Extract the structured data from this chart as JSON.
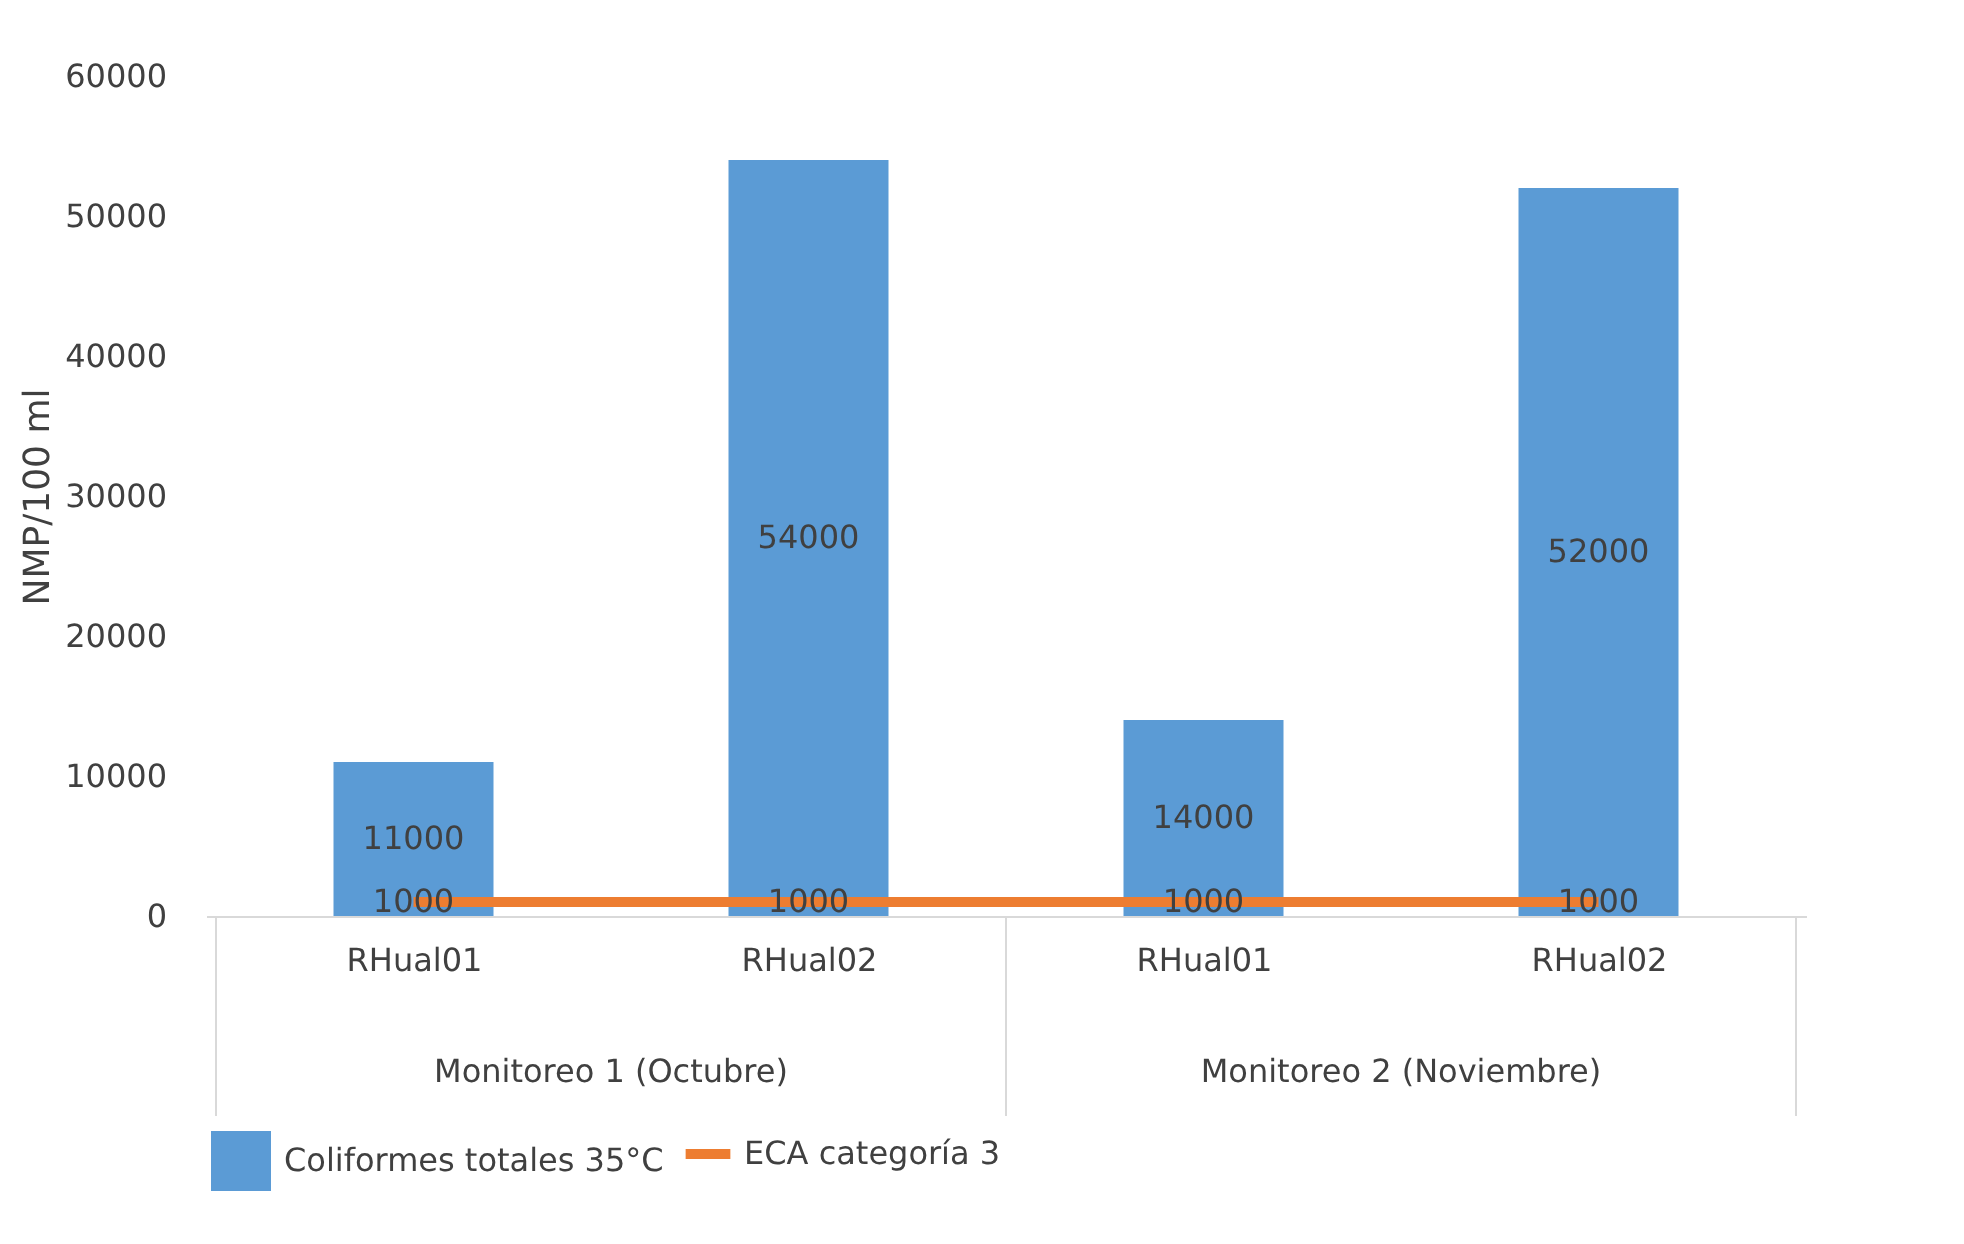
{
  "chart_data": {
    "type": "bar",
    "ylabel": "NMP/100 ml",
    "categories": [
      "RHual01",
      "RHual02",
      "RHual01",
      "RHual02"
    ],
    "series": [
      {
        "name": "Coliformes totales 35°C",
        "color": "#5b9bd5",
        "values": [
          11000,
          54000,
          14000,
          52000
        ]
      },
      {
        "name": "ECA categoría 3",
        "type": "line",
        "color": "#ed7d31",
        "values": [
          1000,
          1000,
          1000,
          1000
        ]
      }
    ],
    "annotations": [
      "Monitoreo 1 (Octubre)",
      "Monitoreo 2 (Noviembre)"
    ],
    "ylim": [
      0,
      60000
    ],
    "yticks": [
      0,
      10000,
      20000,
      30000,
      40000,
      50000,
      60000
    ],
    "grid": false,
    "legend": "bottom",
    "data_labels": true
  }
}
